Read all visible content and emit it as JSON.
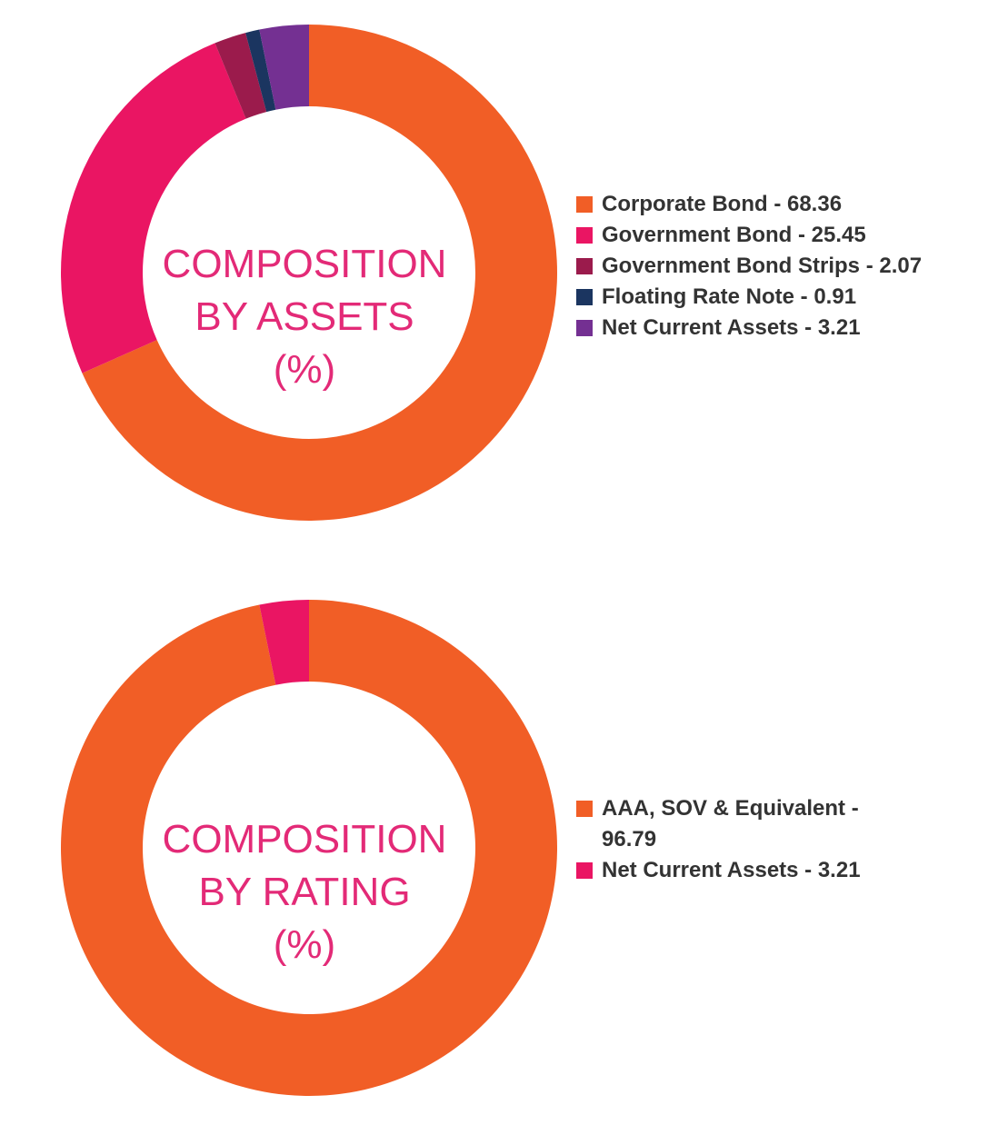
{
  "chart_data": [
    {
      "type": "pie",
      "variant": "donut",
      "center_label": [
        "COMPOSITION",
        "BY ASSETS",
        "(%)"
      ],
      "legend_position": "right",
      "slices": [
        {
          "label": "Corporate Bond - 68.36",
          "value": 68.36,
          "color": "#f15e26"
        },
        {
          "label": "Government Bond - 25.45",
          "value": 25.45,
          "color": "#ea1563"
        },
        {
          "label": "Government Bond Strips - 2.07",
          "value": 2.07,
          "color": "#9b1b4c"
        },
        {
          "label": "Floating Rate Note - 0.91",
          "value": 0.91,
          "color": "#1b3560"
        },
        {
          "label": "Net Current Assets - 3.21",
          "value": 3.21,
          "color": "#743092"
        }
      ]
    },
    {
      "type": "pie",
      "variant": "donut",
      "center_label": [
        "COMPOSITION",
        "BY RATING",
        "(%)"
      ],
      "legend_position": "right",
      "slices": [
        {
          "label": "AAA, SOV & Equivalent - 96.79",
          "value": 96.79,
          "color": "#f15e26"
        },
        {
          "label": "Net Current Assets - 3.21",
          "value": 3.21,
          "color": "#ea1563"
        }
      ]
    }
  ],
  "colors": {
    "center_text": "#e32a77",
    "legend_text": "#333333"
  }
}
